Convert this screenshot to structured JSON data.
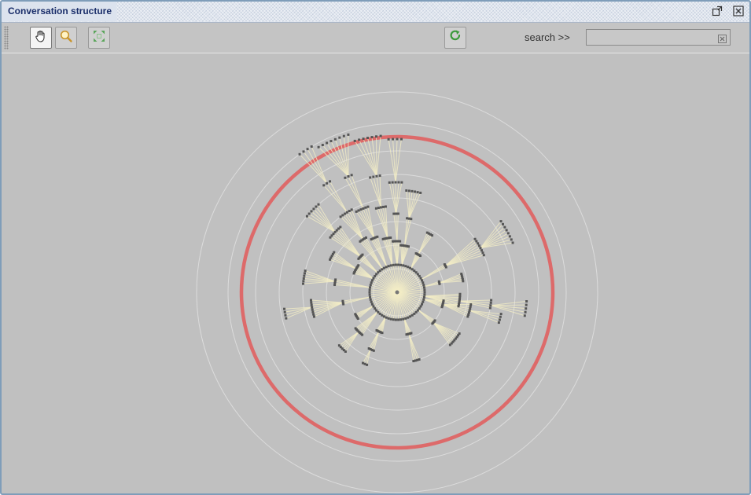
{
  "window": {
    "title": "Conversation structure"
  },
  "toolbar": {
    "pan_tool": {
      "icon": "hand-icon",
      "active": true
    },
    "zoom_tool": {
      "icon": "magnifier-icon",
      "active": false
    },
    "fit_tool": {
      "icon": "fit-to-screen-icon",
      "active": false
    },
    "refresh": {
      "icon": "refresh-icon"
    },
    "search_label": "search >>",
    "search_value": ""
  },
  "graph": {
    "ring_color": "#e06060",
    "edge_color": "#f3edc6",
    "node_color": "#555555",
    "background": "#c0c0c0"
  }
}
